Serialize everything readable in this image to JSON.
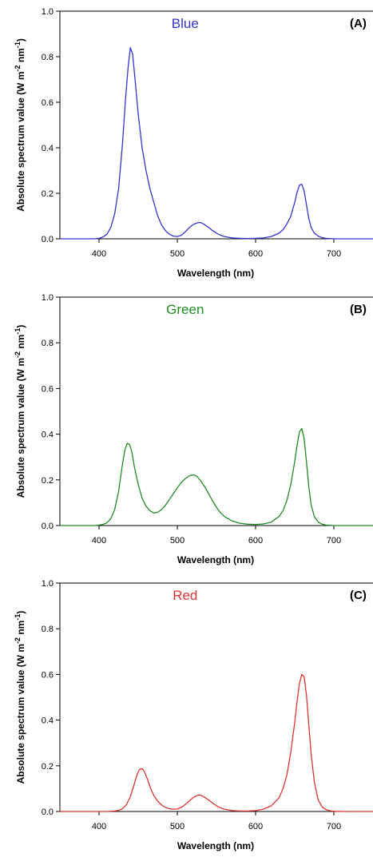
{
  "chart_data": [
    {
      "type": "line",
      "title": "Blue",
      "panel_label": "(A)",
      "xlabel": "Wavelength (nm)",
      "ylabel": [
        "Absolute spectrum value (W m",
        "-2",
        " nm",
        "-1",
        ")"
      ],
      "xlim": [
        350,
        750
      ],
      "ylim": [
        0,
        1.0
      ],
      "xticks": [
        400,
        500,
        600,
        700
      ],
      "yticks": [
        "0.0",
        "0.2",
        "0.4",
        "0.6",
        "0.8",
        "1.0"
      ],
      "color": "#3333cc",
      "series": [
        {
          "x": [
            350,
            380,
            395,
            400,
            405,
            410,
            415,
            420,
            425,
            430,
            434,
            437,
            440,
            443,
            446,
            450,
            455,
            460,
            465,
            470,
            475,
            480,
            485,
            490,
            495,
            500,
            505,
            510,
            515,
            520,
            525,
            528,
            531,
            535,
            540,
            545,
            550,
            555,
            560,
            570,
            580,
            590,
            600,
            610,
            620,
            630,
            635,
            640,
            645,
            650,
            653,
            656,
            659,
            662,
            665,
            668,
            671,
            675,
            680,
            685,
            690,
            695,
            700,
            720,
            750
          ],
          "y": [
            0.0,
            0.0,
            0.0,
            0.002,
            0.008,
            0.02,
            0.05,
            0.11,
            0.22,
            0.42,
            0.62,
            0.75,
            0.84,
            0.81,
            0.7,
            0.55,
            0.4,
            0.3,
            0.22,
            0.16,
            0.1,
            0.06,
            0.035,
            0.02,
            0.012,
            0.01,
            0.015,
            0.03,
            0.048,
            0.062,
            0.07,
            0.072,
            0.07,
            0.062,
            0.05,
            0.036,
            0.025,
            0.016,
            0.01,
            0.004,
            0.002,
            0.001,
            0.002,
            0.004,
            0.01,
            0.025,
            0.04,
            0.065,
            0.1,
            0.16,
            0.205,
            0.235,
            0.24,
            0.21,
            0.15,
            0.09,
            0.05,
            0.025,
            0.012,
            0.005,
            0.002,
            0.001,
            0.0,
            0.0,
            0.0
          ]
        }
      ]
    },
    {
      "type": "line",
      "title": "Green",
      "panel_label": "(B)",
      "xlabel": "Wavelength (nm)",
      "ylabel": [
        "Absolute spectrum value (W m",
        "-2",
        " nm",
        "-1",
        ")"
      ],
      "xlim": [
        350,
        750
      ],
      "ylim": [
        0,
        1.0
      ],
      "xticks": [
        400,
        500,
        600,
        700
      ],
      "yticks": [
        "0.0",
        "0.2",
        "0.4",
        "0.6",
        "0.8",
        "1.0"
      ],
      "color": "#228b22",
      "series": [
        {
          "x": [
            350,
            380,
            395,
            400,
            405,
            410,
            415,
            420,
            425,
            430,
            433,
            436,
            439,
            442,
            445,
            450,
            455,
            460,
            465,
            470,
            475,
            480,
            485,
            490,
            495,
            500,
            505,
            510,
            515,
            520,
            523,
            526,
            530,
            535,
            540,
            545,
            550,
            555,
            560,
            570,
            580,
            590,
            600,
            610,
            620,
            630,
            635,
            640,
            645,
            650,
            653,
            656,
            659,
            662,
            665,
            668,
            671,
            675,
            680,
            685,
            690,
            695,
            700,
            720,
            750
          ],
          "y": [
            0.0,
            0.0,
            0.0,
            0.002,
            0.005,
            0.012,
            0.03,
            0.07,
            0.15,
            0.27,
            0.33,
            0.36,
            0.355,
            0.32,
            0.26,
            0.18,
            0.12,
            0.085,
            0.065,
            0.055,
            0.058,
            0.07,
            0.09,
            0.115,
            0.14,
            0.165,
            0.188,
            0.205,
            0.217,
            0.222,
            0.22,
            0.212,
            0.195,
            0.17,
            0.14,
            0.108,
            0.08,
            0.057,
            0.04,
            0.02,
            0.01,
            0.006,
            0.005,
            0.007,
            0.015,
            0.04,
            0.065,
            0.11,
            0.18,
            0.28,
            0.35,
            0.41,
            0.425,
            0.38,
            0.28,
            0.17,
            0.09,
            0.04,
            0.015,
            0.006,
            0.002,
            0.001,
            0.0,
            0.0,
            0.0
          ]
        }
      ]
    },
    {
      "type": "line",
      "title": "Red",
      "panel_label": "(C)",
      "xlabel": "Wavelength (nm)",
      "ylabel": [
        "Absolute spectrum value (W m",
        "-2",
        " nm",
        "-1",
        ")"
      ],
      "xlim": [
        350,
        750
      ],
      "ylim": [
        0,
        1.0
      ],
      "xticks": [
        400,
        500,
        600,
        700
      ],
      "yticks": [
        "0.0",
        "0.2",
        "0.4",
        "0.6",
        "0.8",
        "1.0"
      ],
      "color": "#dd3333",
      "series": [
        {
          "x": [
            350,
            380,
            400,
            410,
            420,
            425,
            430,
            435,
            440,
            445,
            449,
            452,
            455,
            458,
            462,
            466,
            470,
            475,
            480,
            485,
            490,
            495,
            500,
            505,
            510,
            515,
            520,
            525,
            528,
            531,
            535,
            540,
            545,
            550,
            555,
            560,
            570,
            580,
            590,
            600,
            610,
            620,
            630,
            635,
            640,
            645,
            650,
            653,
            656,
            659,
            662,
            665,
            668,
            671,
            675,
            680,
            685,
            690,
            695,
            700,
            720,
            750
          ],
          "y": [
            0.0,
            0.0,
            0.0,
            0.0,
            0.002,
            0.005,
            0.012,
            0.03,
            0.065,
            0.12,
            0.165,
            0.185,
            0.188,
            0.175,
            0.14,
            0.1,
            0.07,
            0.045,
            0.028,
            0.018,
            0.012,
            0.01,
            0.011,
            0.018,
            0.03,
            0.045,
            0.06,
            0.07,
            0.072,
            0.07,
            0.062,
            0.05,
            0.037,
            0.025,
            0.016,
            0.01,
            0.004,
            0.002,
            0.002,
            0.004,
            0.01,
            0.025,
            0.06,
            0.1,
            0.16,
            0.26,
            0.39,
            0.48,
            0.56,
            0.6,
            0.59,
            0.51,
            0.38,
            0.25,
            0.13,
            0.05,
            0.02,
            0.008,
            0.003,
            0.001,
            0.0,
            0.0
          ]
        }
      ]
    }
  ]
}
